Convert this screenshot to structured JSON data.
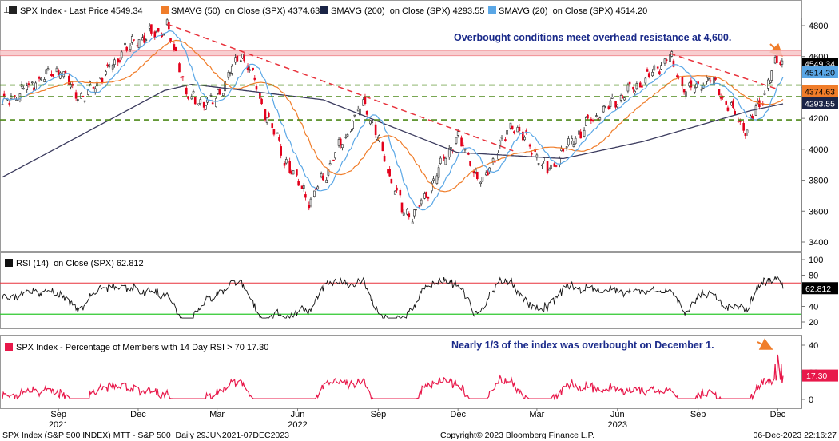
{
  "colors": {
    "price_up": "#222222",
    "price_down": "#e3001b",
    "ma50": "#f07d2a",
    "ma200": "#3b3b5e",
    "ma20": "#5aa7e6",
    "resistance_band": "#f7c6c8",
    "trend_line": "#e8323c",
    "support_line": "#4e8a1a",
    "rsi_line": "#111111",
    "rsi_upper": "#e8323c",
    "rsi_lower": "#2ec82e",
    "breadth_line": "#e8184a",
    "annotation_text": "#1a2a8a",
    "arrow": "#f07d2a"
  },
  "chart_data": [
    {
      "type": "line",
      "panel": "price",
      "legend": [
        {
          "name": "SPX Index - Last Price 4549.34",
          "color": "#222222",
          "icon": "candle-icon"
        },
        {
          "name": "SMAVG (50)  on Close (SPX) 4374.63",
          "color": "#f07d2a"
        },
        {
          "name": "SMAVG (200)  on Close (SPX) 4293.55",
          "color": "#1a2446"
        },
        {
          "name": "SMAVG (20)  on Close (SPX) 4514.20",
          "color": "#5aa7e6"
        }
      ],
      "annotation": "Overbought conditions meet overhead resistance at 4,600.",
      "yticks": [
        3400,
        3600,
        3800,
        4000,
        4200,
        4400,
        4600,
        4800
      ],
      "ylim": [
        3350,
        4870
      ],
      "value_tags": [
        "4549.34",
        "4514.20",
        "4374.63",
        "4293.55"
      ],
      "price_anchors": {
        "x": [
          "2021-06-29",
          "2021-08-31",
          "2021-09-30",
          "2021-10-08",
          "2021-11-22",
          "2022-01-03",
          "2022-01-27",
          "2022-02-24",
          "2022-03-29",
          "2022-05-20",
          "2022-06-16",
          "2022-08-16",
          "2022-09-30",
          "2022-10-13",
          "2022-11-30",
          "2022-12-28",
          "2023-02-02",
          "2023-03-13",
          "2023-04-28",
          "2023-06-30",
          "2023-07-31",
          "2023-08-18",
          "2023-09-15",
          "2023-10-27",
          "2023-11-30",
          "2023-12-07"
        ],
        "close": [
          4292,
          4522,
          4307,
          4391,
          4682,
          4796,
          4326,
          4288,
          4631,
          3901,
          3666,
          4305,
          3586,
          3577,
          4080,
          3783,
          4179,
          3855,
          4169,
          4450,
          4589,
          4370,
          4450,
          4117,
          4568,
          4549
        ]
      },
      "ma200_anchors": {
        "x": [
          "2021-06-29",
          "2021-12-31",
          "2022-01-31",
          "2022-06-30",
          "2022-11-30",
          "2023-03-31",
          "2023-06-30",
          "2023-10-31",
          "2023-12-07"
        ],
        "values": [
          3820,
          4380,
          4420,
          4320,
          3980,
          3940,
          4050,
          4250,
          4293.55
        ]
      },
      "resistance_band": [
        4605,
        4640
      ],
      "horizontal_lines": [
        4415,
        4340,
        4190
      ],
      "trend_lines": [
        {
          "from": [
            "2022-01-03",
            4810
          ],
          "to": [
            "2023-02-02",
            3990
          ]
        },
        {
          "from": [
            "2023-07-31",
            4620
          ],
          "to": [
            "2023-11-30",
            4390
          ]
        }
      ]
    },
    {
      "type": "line",
      "panel": "rsi",
      "legend": [
        {
          "name": "RSI (14)  on Close (SPX) 62.812",
          "color": "#111111"
        }
      ],
      "yticks": [
        20,
        40,
        60,
        80,
        100
      ],
      "ylim": [
        14,
        104
      ],
      "levels": [
        70,
        30
      ],
      "value_tag": "62.812",
      "last": 62.812
    },
    {
      "type": "area",
      "panel": "breadth",
      "legend": [
        {
          "name": "SPX Index - Percentage of Members with 14 Day RSI > 70 17.30",
          "color": "#e8184a"
        }
      ],
      "annotation": "Nearly 1/3 of the index was overbought on December 1.",
      "yticks": [
        0,
        20,
        40
      ],
      "ylim": [
        -2,
        44
      ],
      "value_tag": "17.30",
      "last": 17.3,
      "peak": 33
    }
  ],
  "x_axis": {
    "months": [
      {
        "label": "Sep",
        "date": "2021-09-01"
      },
      {
        "label": "Dec",
        "date": "2021-12-01"
      },
      {
        "label": "Mar",
        "date": "2022-03-01"
      },
      {
        "label": "Jun",
        "date": "2022-06-01"
      },
      {
        "label": "Sep",
        "date": "2022-09-01"
      },
      {
        "label": "Dec",
        "date": "2022-12-01"
      },
      {
        "label": "Mar",
        "date": "2023-03-01"
      },
      {
        "label": "Jun",
        "date": "2023-06-01"
      },
      {
        "label": "Sep",
        "date": "2023-09-01"
      },
      {
        "label": "Dec",
        "date": "2023-12-01"
      }
    ],
    "years": [
      {
        "label": "2021",
        "date": "2021-09-01"
      },
      {
        "label": "2022",
        "date": "2022-06-01"
      },
      {
        "label": "2023",
        "date": "2023-06-01"
      }
    ]
  },
  "footer": {
    "left": "SPX Index (S&P 500 INDEX) MTT - S&P 500  Daily 29JUN2021-07DEC2023",
    "center": "Copyright© 2023 Bloomberg Finance L.P.",
    "right": "06-Dec-2023 22:16:27"
  }
}
